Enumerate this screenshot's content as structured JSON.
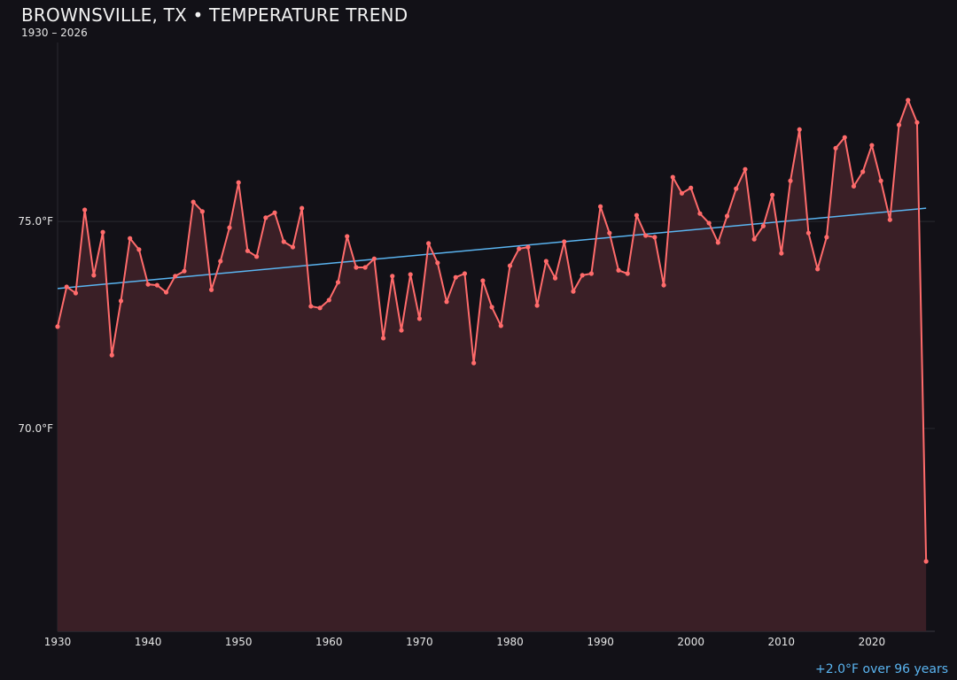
{
  "chart_data": {
    "type": "line",
    "title": "BROWNSVILLE, TX • TEMPERATURE TREND",
    "subtitle": "1930 – 2026",
    "annotation": "+2.0°F over 96 years",
    "xlim": [
      1930,
      2027
    ],
    "ylim": [
      65.1,
      79.6
    ],
    "x_ticks": [
      1930,
      1940,
      1950,
      1960,
      1970,
      1980,
      1990,
      2000,
      2010,
      2020
    ],
    "y_ticks": [
      {
        "value": 70,
        "label": "70.0°F"
      },
      {
        "value": 75,
        "label": "75.0°F"
      }
    ],
    "grid": true,
    "colors": {
      "series": "#ff6b6b",
      "fill": "#3a1f26",
      "trend": "#5ab4f0",
      "background": "#121117"
    },
    "x": [
      1930,
      1931,
      1932,
      1933,
      1934,
      1935,
      1936,
      1937,
      1938,
      1939,
      1940,
      1941,
      1942,
      1943,
      1944,
      1945,
      1946,
      1947,
      1948,
      1949,
      1950,
      1951,
      1952,
      1953,
      1954,
      1955,
      1956,
      1957,
      1958,
      1959,
      1960,
      1961,
      1962,
      1963,
      1964,
      1965,
      1966,
      1967,
      1968,
      1969,
      1970,
      1971,
      1972,
      1973,
      1974,
      1975,
      1976,
      1977,
      1978,
      1979,
      1980,
      1981,
      1982,
      1983,
      1984,
      1985,
      1986,
      1987,
      1988,
      1989,
      1990,
      1991,
      1992,
      1993,
      1994,
      1995,
      1996,
      1997,
      1998,
      1999,
      2000,
      2001,
      2002,
      2003,
      2004,
      2005,
      2006,
      2007,
      2008,
      2009,
      2010,
      2011,
      2012,
      2013,
      2014,
      2015,
      2016,
      2017,
      2018,
      2019,
      2020,
      2021,
      2022,
      2023,
      2024,
      2025,
      2026
    ],
    "values": [
      72.46,
      73.42,
      73.27,
      75.28,
      73.7,
      74.74,
      71.77,
      73.08,
      74.59,
      74.32,
      73.48,
      73.46,
      73.29,
      73.68,
      73.8,
      75.47,
      75.24,
      73.35,
      74.04,
      74.85,
      75.94,
      74.29,
      74.15,
      75.09,
      75.21,
      74.51,
      74.38,
      75.32,
      72.95,
      72.91,
      73.1,
      73.53,
      74.64,
      73.89,
      73.89,
      74.1,
      72.18,
      73.68,
      72.37,
      73.72,
      72.65,
      74.47,
      74.0,
      73.06,
      73.65,
      73.74,
      71.58,
      73.57,
      72.93,
      72.48,
      73.93,
      74.34,
      74.38,
      72.97,
      74.04,
      73.63,
      74.51,
      73.31,
      73.7,
      73.74,
      75.36,
      74.72,
      73.82,
      73.74,
      75.15,
      74.66,
      74.62,
      73.46,
      76.07,
      75.68,
      75.81,
      75.19,
      74.96,
      74.49,
      75.13,
      75.79,
      76.26,
      74.57,
      74.89,
      75.64,
      74.23,
      75.98,
      77.22,
      74.72,
      73.85,
      74.62,
      76.77,
      77.03,
      75.85,
      76.2,
      76.84,
      75.98,
      75.04,
      77.33,
      77.93,
      77.39,
      66.79
    ],
    "trend": {
      "start": [
        1930,
        73.38
      ],
      "end": [
        2026,
        75.32
      ]
    }
  }
}
